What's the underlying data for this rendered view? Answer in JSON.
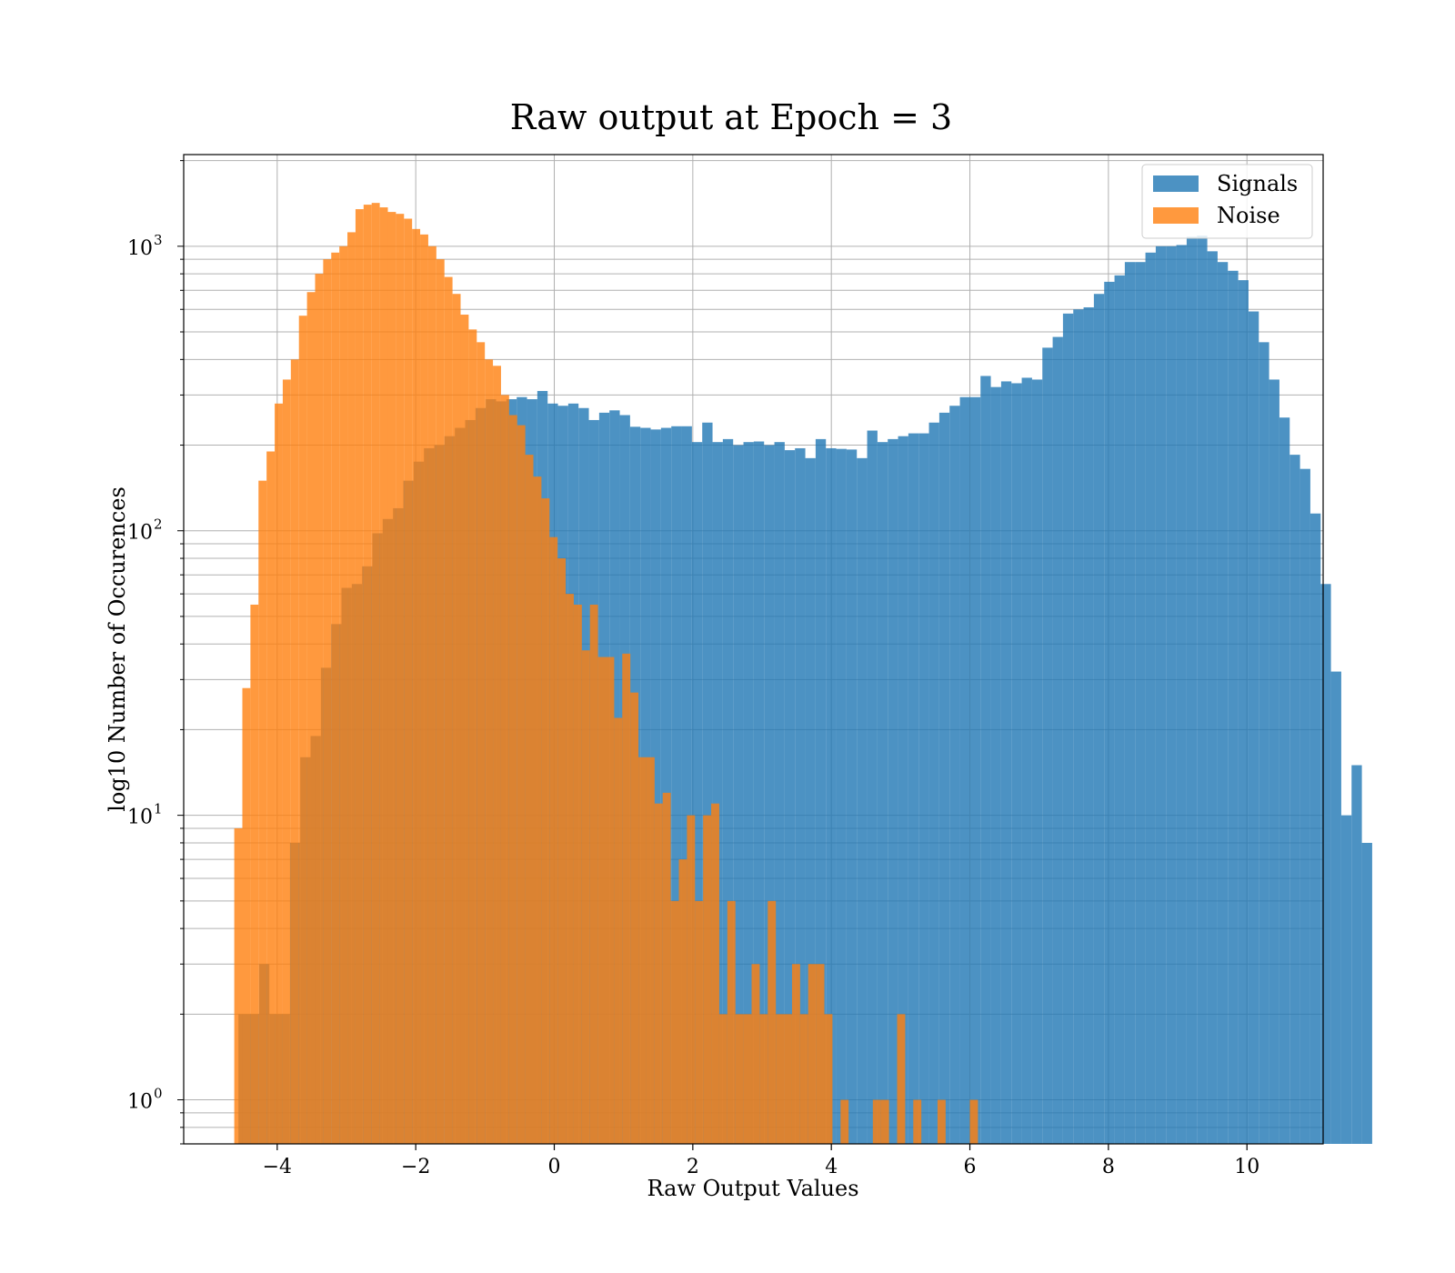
{
  "chart_data": {
    "type": "bar",
    "title": "Raw output at Epoch = 3",
    "xlabel": "Raw Output Values",
    "ylabel": "log10 Number of Occurences",
    "yscale": "log",
    "xlim": [
      -5.35,
      11.1
    ],
    "ylim": [
      0.7,
      2100
    ],
    "grid": true,
    "legend_position": "top-right",
    "x_ticks": [
      {
        "value": -4,
        "label": "−4"
      },
      {
        "value": -2,
        "label": "−2"
      },
      {
        "value": 0,
        "label": "0"
      },
      {
        "value": 2,
        "label": "2"
      },
      {
        "value": 4,
        "label": "4"
      },
      {
        "value": 6,
        "label": "6"
      },
      {
        "value": 8,
        "label": "8"
      },
      {
        "value": 10,
        "label": "10"
      }
    ],
    "y_ticks": [
      {
        "value": 1,
        "base": "10",
        "exp": "0"
      },
      {
        "value": 10,
        "base": "10",
        "exp": "1"
      },
      {
        "value": 100,
        "base": "10",
        "exp": "2"
      },
      {
        "value": 1000,
        "base": "10",
        "exp": "3"
      }
    ],
    "series": [
      {
        "name": "Signals",
        "color": "#1f77b4",
        "opacity": 0.8,
        "bin_start": -4.56,
        "bin_width": 0.1488,
        "values": [
          2,
          2,
          3,
          2,
          2,
          8,
          16,
          19,
          33,
          47,
          63,
          65,
          75,
          98,
          110,
          120,
          150,
          175,
          195,
          200,
          215,
          230,
          245,
          270,
          290,
          285,
          290,
          295,
          290,
          310,
          280,
          275,
          280,
          270,
          245,
          260,
          265,
          255,
          232,
          230,
          227,
          230,
          233,
          233,
          205,
          240,
          205,
          210,
          200,
          205,
          206,
          200,
          205,
          192,
          195,
          180,
          210,
          195,
          194,
          193,
          180,
          225,
          205,
          210,
          215,
          220,
          220,
          240,
          260,
          275,
          295,
          295,
          350,
          320,
          335,
          330,
          345,
          340,
          440,
          480,
          580,
          600,
          610,
          680,
          750,
          790,
          880,
          880,
          950,
          1000,
          1000,
          1010,
          1080,
          1090,
          960,
          880,
          820,
          760,
          590,
          460,
          340,
          250,
          185,
          165,
          115,
          65,
          32,
          10,
          15,
          8
        ]
      },
      {
        "name": "Noise",
        "color": "#ff7f0e",
        "opacity": 0.8,
        "bin_start": -4.62,
        "bin_width": 0.1167,
        "values": [
          9,
          28,
          55,
          150,
          190,
          280,
          340,
          400,
          570,
          690,
          800,
          900,
          950,
          1000,
          1120,
          1350,
          1400,
          1420,
          1370,
          1320,
          1300,
          1250,
          1150,
          1100,
          1000,
          900,
          780,
          680,
          575,
          510,
          460,
          400,
          380,
          300,
          255,
          235,
          185,
          155,
          130,
          95,
          80,
          60,
          55,
          38,
          55,
          36,
          36,
          22,
          37,
          27,
          16,
          16,
          11,
          12,
          5,
          7,
          10,
          5,
          10,
          11,
          2,
          5,
          2,
          2,
          3,
          2,
          5,
          2,
          2,
          3,
          2,
          3,
          3,
          2,
          0,
          1,
          0,
          0,
          0,
          1,
          1,
          0,
          2,
          0,
          1,
          0,
          0,
          1,
          0,
          0,
          0,
          1
        ]
      }
    ]
  }
}
